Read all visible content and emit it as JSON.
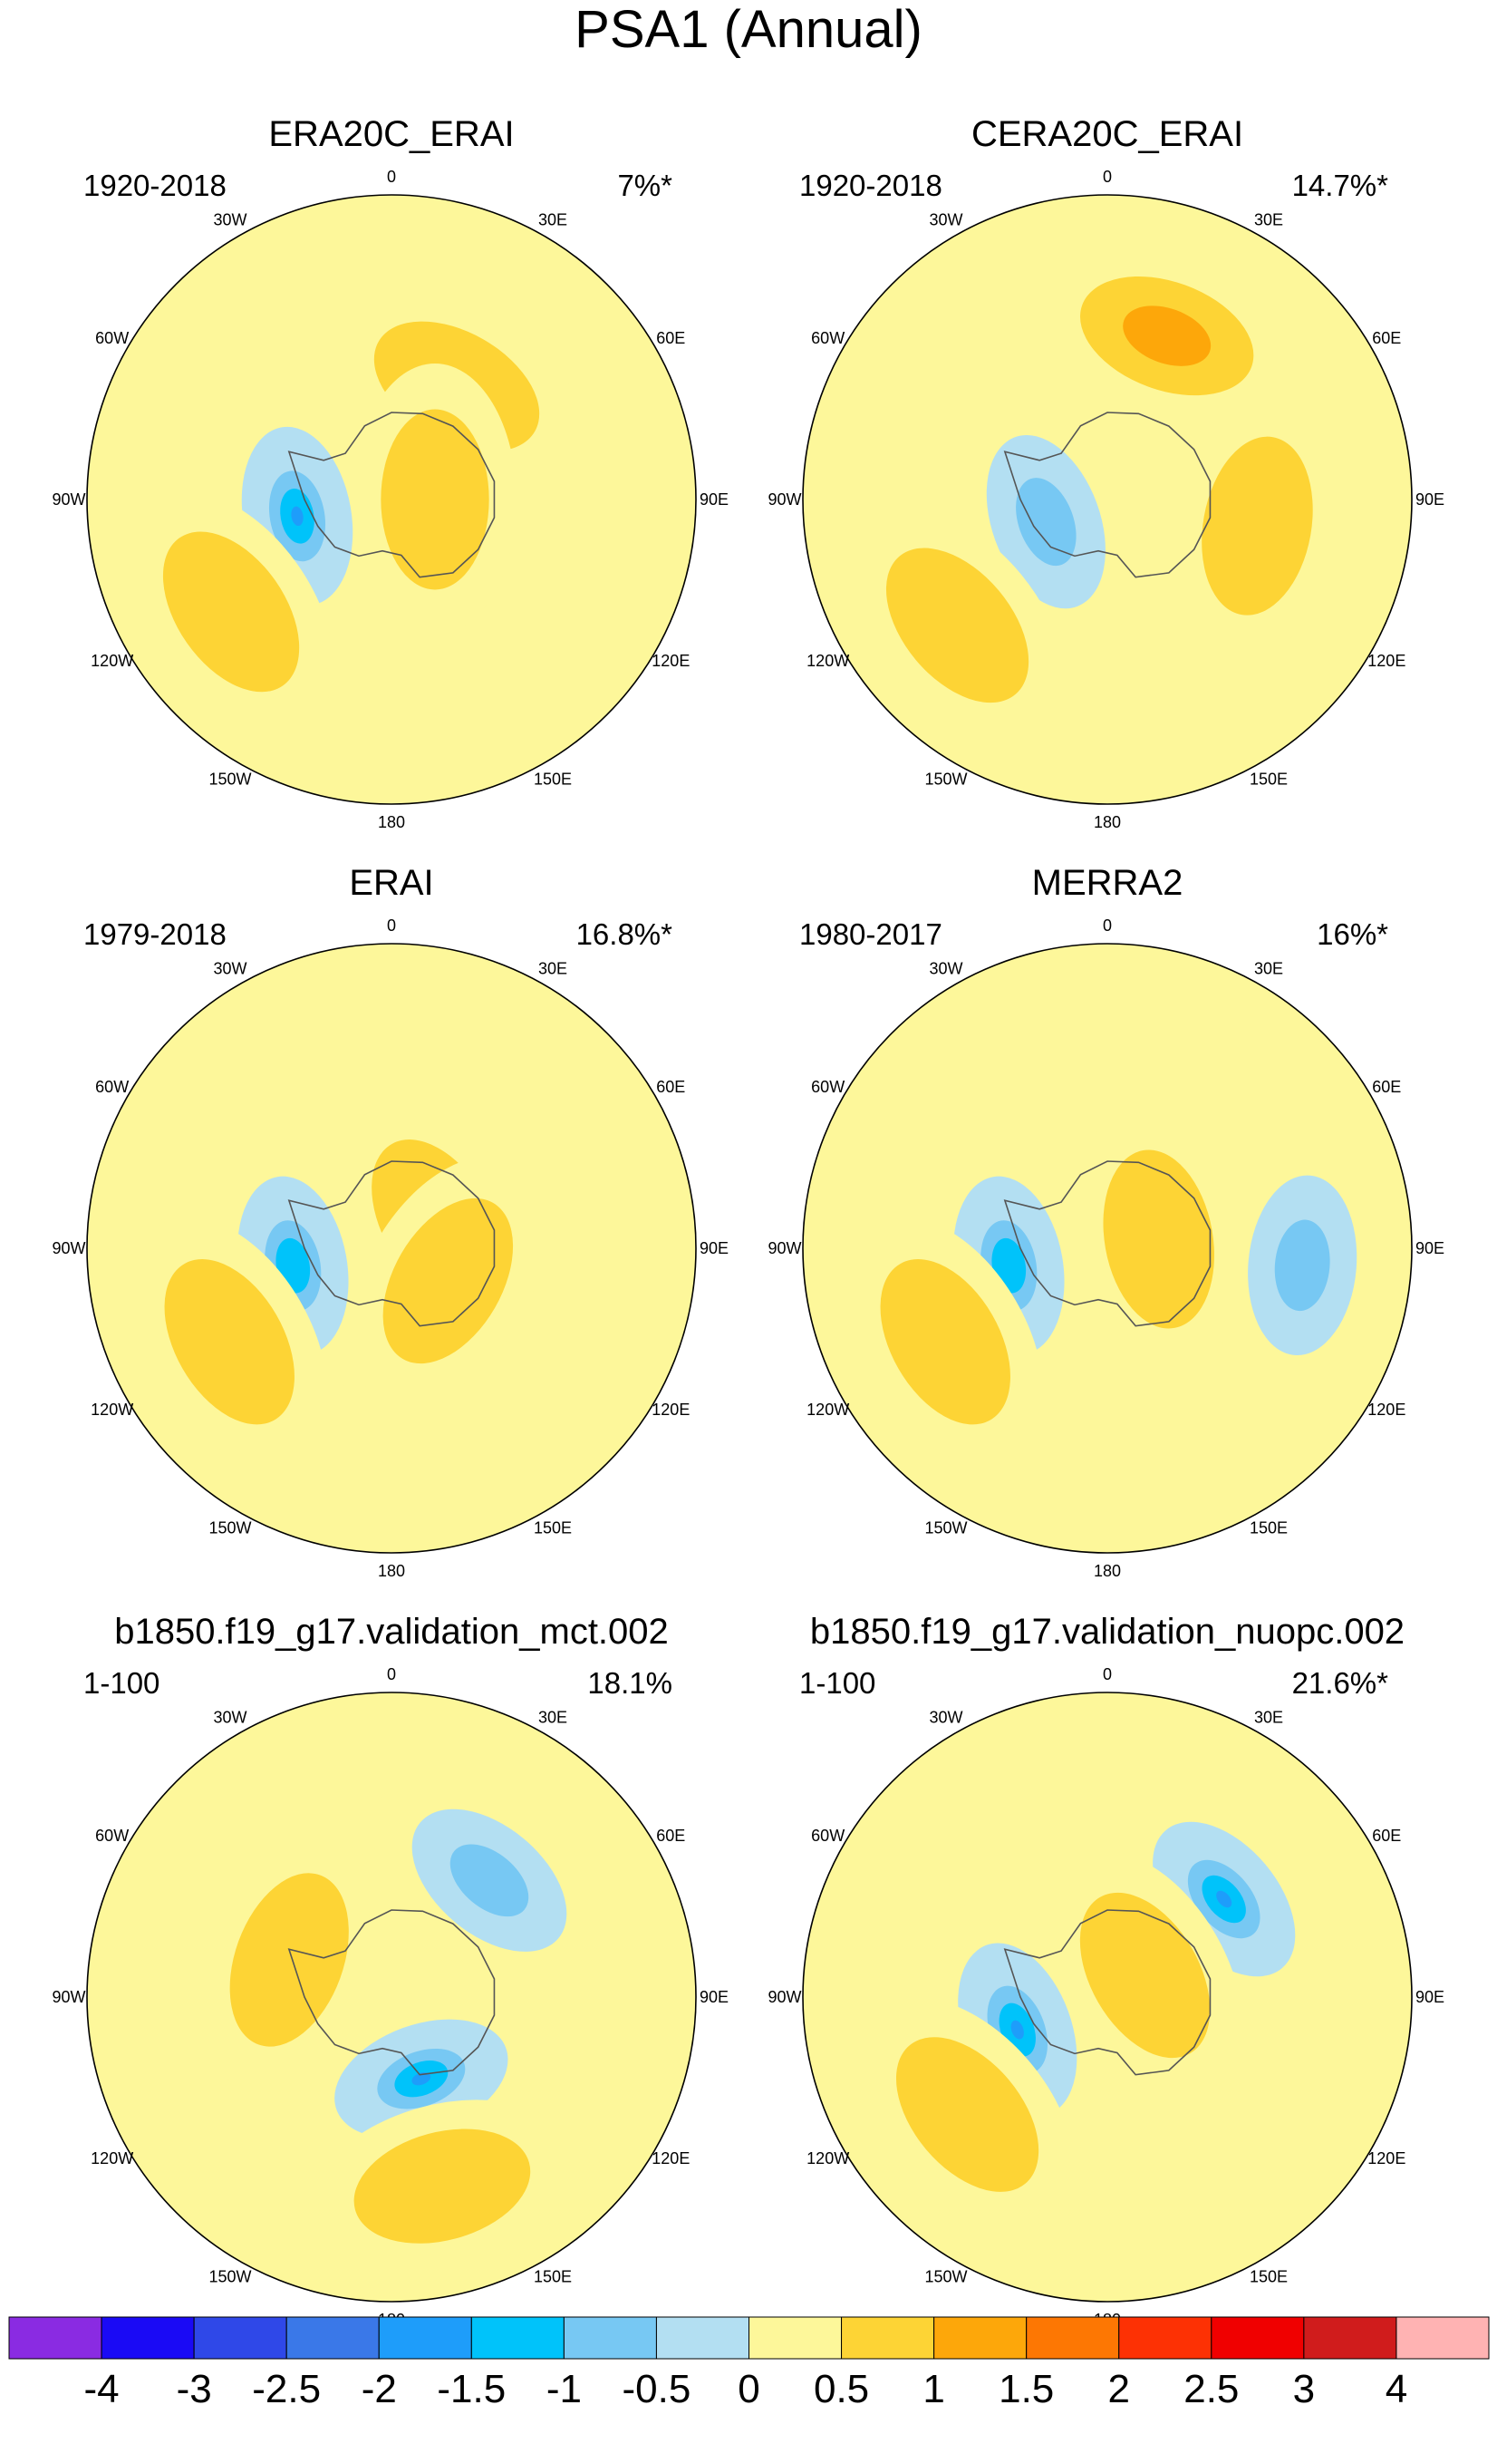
{
  "chart_data": {
    "type": "contour_map",
    "title": "PSA1 (Annual)",
    "projection": "south-polar-stereographic",
    "lon_labels": [
      "0",
      "30E",
      "60E",
      "90E",
      "120E",
      "150E",
      "180",
      "150W",
      "120W",
      "90W",
      "60W",
      "30W"
    ],
    "colorbar": {
      "levels": [
        "-4",
        "-3",
        "-2.5",
        "-2",
        "-1.5",
        "-1",
        "-0.5",
        "0",
        "0.5",
        "1",
        "1.5",
        "2",
        "2.5",
        "3",
        "4"
      ],
      "colors": [
        "#8a2be2",
        "#1a0af5",
        "#2f48e8",
        "#3a78e8",
        "#1e9dfa",
        "#00c3fa",
        "#77c8f3",
        "#b3dff2",
        "#fdf79a",
        "#fdd435",
        "#fda70a",
        "#fd7703",
        "#fd3104",
        "#f00000",
        "#d01c1c",
        "#ffb3b3"
      ]
    },
    "panels": [
      {
        "title": "ERA20C_ERAI",
        "period": "1920-2018",
        "variance": "7%*",
        "features": [
          {
            "value": "-1.5",
            "lat": -68,
            "lon": -100,
            "bin": 4
          },
          {
            "value": "1",
            "lat": -45,
            "lon": -125,
            "bin": 9
          },
          {
            "value": "1",
            "lat": -60,
            "lon": 30,
            "bin": 9
          },
          {
            "value": "1",
            "lat": -80,
            "lon": 90,
            "bin": 9
          }
        ]
      },
      {
        "title": "CERA20C_ERAI",
        "period": "1920-2018",
        "variance": "14.7%*",
        "features": [
          {
            "value": "1.5",
            "lat": -50,
            "lon": 20,
            "bin": 10
          },
          {
            "value": "-1",
            "lat": -75,
            "lon": -110,
            "bin": 6
          },
          {
            "value": "1",
            "lat": -45,
            "lon": -130,
            "bin": 9
          },
          {
            "value": "1",
            "lat": -55,
            "lon": 100,
            "bin": 9
          }
        ]
      },
      {
        "title": "ERAI",
        "period": "1979-2018",
        "variance": "16.8%*",
        "features": [
          {
            "value": "-1.5",
            "lat": -67,
            "lon": -100,
            "bin": 5
          },
          {
            "value": "1",
            "lat": -47,
            "lon": -120,
            "bin": 9
          },
          {
            "value": "1",
            "lat": -78,
            "lon": 60,
            "bin": 9
          },
          {
            "value": "1",
            "lat": -75,
            "lon": 120,
            "bin": 9
          }
        ]
      },
      {
        "title": "MERRA2",
        "period": "1980-2017",
        "variance": "16%*",
        "features": [
          {
            "value": "-1.5",
            "lat": -67,
            "lon": -100,
            "bin": 5
          },
          {
            "value": "1",
            "lat": -47,
            "lon": -120,
            "bin": 9
          },
          {
            "value": "1",
            "lat": -78,
            "lon": 80,
            "bin": 9
          },
          {
            "value": "-0.5",
            "lat": -45,
            "lon": 95,
            "bin": 6
          }
        ]
      },
      {
        "title": "b1850.f19_g17.validation_mct.002",
        "period": "1-100",
        "variance": "18.1%",
        "features": [
          {
            "value": "-1",
            "lat": -55,
            "lon": 40,
            "bin": 6
          },
          {
            "value": "-1.5",
            "lat": -70,
            "lon": 160,
            "bin": 4
          },
          {
            "value": "1",
            "lat": -65,
            "lon": -70,
            "bin": 9
          },
          {
            "value": "1",
            "lat": -45,
            "lon": 165,
            "bin": 9
          }
        ]
      },
      {
        "title": "b1850.f19_g17.validation_nuopc.002",
        "period": "1-100",
        "variance": "21.6%*",
        "features": [
          {
            "value": "-1.5",
            "lat": -55,
            "lon": 50,
            "bin": 4
          },
          {
            "value": "1",
            "lat": -80,
            "lon": 60,
            "bin": 9
          },
          {
            "value": "-1.5",
            "lat": -68,
            "lon": -110,
            "bin": 4
          },
          {
            "value": "1",
            "lat": -48,
            "lon": -130,
            "bin": 9
          }
        ]
      }
    ]
  }
}
